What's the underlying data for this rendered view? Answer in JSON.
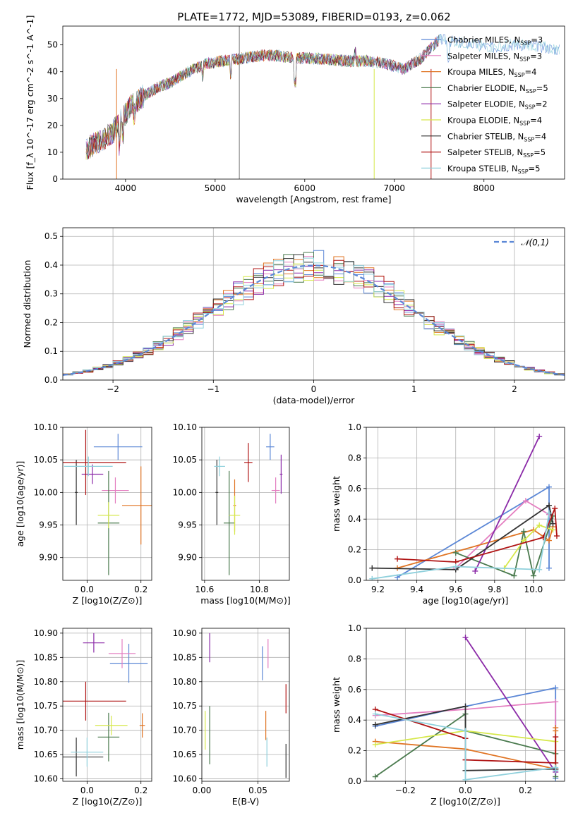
{
  "figure": {
    "title": "PLATE=1772, MJD=53089, FIBERID=0193, z=0.062"
  },
  "colors": {
    "Chabrier MILES": "#5b87d6",
    "Salpeter MILES": "#e47ec0",
    "Kroupa MILES": "#e07423",
    "Chabrier ELODIE": "#4a7a4e",
    "Salpeter ELODIE": "#8b2aa8",
    "Kroupa ELODIE": "#d6e84a",
    "Chabrier STELIB": "#333333",
    "Salpeter STELIB": "#b01515",
    "Kroupa STELIB": "#8fd0dc"
  },
  "chart_data": [
    {
      "id": "spectrum",
      "type": "line",
      "title": "PLATE=1772, MJD=53089, FIBERID=0193, z=0.062",
      "xlabel": "wavelength [Angstrom, rest frame]",
      "ylabel": "Flux [f_λ 10^-17 erg cm^-2 s^-1 A^-1]",
      "xlim": [
        3300,
        8900
      ],
      "ylim": [
        0,
        57
      ],
      "xticks": [
        4000,
        5000,
        6000,
        7000,
        8000
      ],
      "yticks": [
        0,
        10,
        20,
        30,
        40,
        50
      ],
      "grid": false,
      "legend_position": "top-right",
      "continuum": {
        "x": [
          3560,
          3700,
          3850,
          3950,
          4050,
          4200,
          4350,
          4500,
          4700,
          4900,
          5100,
          5300,
          5500,
          5700,
          5900,
          6100,
          6300,
          6500,
          6700,
          6900,
          7100,
          7300,
          7500,
          7700,
          7900,
          8100,
          8300,
          8500,
          8700,
          8850
        ],
        "y": [
          11,
          14,
          17,
          22,
          27,
          31,
          34,
          36,
          40,
          43,
          44,
          45,
          46,
          46,
          45,
          45,
          44.5,
          44,
          44,
          43,
          41,
          45,
          52,
          51,
          50,
          49,
          50,
          50,
          49,
          48
        ]
      },
      "series": [
        {
          "name": "Chabrier MILES, N_SSP=3"
        },
        {
          "name": "Salpeter MILES, N_SSP=3"
        },
        {
          "name": "Kroupa MILES, N_SSP=4"
        },
        {
          "name": "Chabrier ELODIE, N_SSP=5"
        },
        {
          "name": "Salpeter ELODIE, N_SSP=2"
        },
        {
          "name": "Kroupa ELODIE, N_SSP=4"
        },
        {
          "name": "Chabrier STELIB, N_SSP=4"
        },
        {
          "name": "Salpeter STELIB, N_SSP=5"
        },
        {
          "name": "Kroupa STELIB, N_SSP=5"
        }
      ],
      "legend_labels": [
        {
          "pre": "Chabrier MILES, N",
          "sub": "SSP",
          "post": "=3"
        },
        {
          "pre": "Salpeter MILES, N",
          "sub": "SSP",
          "post": "=3"
        },
        {
          "pre": "Kroupa MILES, N",
          "sub": "SSP",
          "post": "=4"
        },
        {
          "pre": "Chabrier ELODIE, N",
          "sub": "SSP",
          "post": "=5"
        },
        {
          "pre": "Salpeter ELODIE, N",
          "sub": "SSP",
          "post": "=2"
        },
        {
          "pre": "Kroupa ELODIE, N",
          "sub": "SSP",
          "post": "=4"
        },
        {
          "pre": "Chabrier STELIB, N",
          "sub": "SSP",
          "post": "=4"
        },
        {
          "pre": "Salpeter STELIB, N",
          "sub": "SSP",
          "post": "=5"
        },
        {
          "pre": "Kroupa STELIB, N",
          "sub": "SSP",
          "post": "=5"
        }
      ]
    },
    {
      "id": "residuals",
      "type": "bar",
      "xlabel": "(data-model)/error",
      "ylabel": "Normed distribution",
      "xlim": [
        -2.5,
        2.5
      ],
      "ylim": [
        0,
        0.53
      ],
      "xticks": [
        -2,
        -1,
        0,
        1,
        2
      ],
      "yticks": [
        0.0,
        0.1,
        0.2,
        0.3,
        0.4,
        0.5
      ],
      "grid": true,
      "bin_width": 0.1,
      "reference_curve": {
        "label": "𝒩(0,1)",
        "mean": 0,
        "sigma": 1,
        "style": "dashed"
      },
      "legend_position": "top-right"
    },
    {
      "id": "age-vs-Z",
      "type": "scatter",
      "xlabel": "Z [log10(Z/Z⊙)]",
      "ylabel": "age [log10(age/yr)]",
      "xlim": [
        -0.09,
        0.24
      ],
      "ylim": [
        9.865,
        10.1
      ],
      "xticks": [
        0.0,
        0.2
      ],
      "yticks": [
        9.9,
        9.95,
        10.0,
        10.05,
        10.1
      ],
      "grid": true,
      "points": [
        {
          "series": "Chabrier MILES",
          "x": 0.115,
          "y": 10.07,
          "xerr": 0.09,
          "yerr": 0.02
        },
        {
          "series": "Salpeter MILES",
          "x": 0.105,
          "y": 10.003,
          "xerr": 0.05,
          "yerr": 0.02
        },
        {
          "series": "Kroupa MILES",
          "x": 0.2,
          "y": 9.98,
          "xerr": 0.07,
          "yerr": 0.06
        },
        {
          "series": "Chabrier ELODIE",
          "x": 0.08,
          "y": 9.953,
          "xerr": 0.04,
          "yerr": 0.08
        },
        {
          "series": "Salpeter ELODIE",
          "x": 0.02,
          "y": 10.028,
          "xerr": 0.04,
          "yerr": 0.015
        },
        {
          "series": "Kroupa ELODIE",
          "x": 0.08,
          "y": 9.965,
          "xerr": 0.04,
          "yerr": 0.02
        },
        {
          "series": "Chabrier STELIB",
          "x": -0.04,
          "y": 10.0,
          "xerr": 0.005,
          "yerr": 0.05
        },
        {
          "series": "Salpeter STELIB",
          "x": -0.005,
          "y": 10.046,
          "xerr": 0.15,
          "yerr": 0.05
        },
        {
          "series": "Kroupa STELIB",
          "x": 0.005,
          "y": 10.04,
          "xerr": 0.09,
          "yerr": 0.015
        }
      ]
    },
    {
      "id": "age-vs-mass",
      "type": "scatter",
      "xlabel": "mass [log10(M/M⊙)]",
      "ylabel": "",
      "xlim": [
        10.59,
        10.91
      ],
      "ylim": [
        9.865,
        10.1
      ],
      "xticks": [
        10.6,
        10.8
      ],
      "yticks": [
        9.9,
        9.95,
        10.0,
        10.05,
        10.1
      ],
      "grid": true,
      "points": [
        {
          "series": "Chabrier MILES",
          "x": 10.84,
          "y": 10.07,
          "xerr": 0.015,
          "yerr": 0.02
        },
        {
          "series": "Salpeter MILES",
          "x": 10.86,
          "y": 10.003,
          "xerr": 0.015,
          "yerr": 0.02
        },
        {
          "series": "Kroupa MILES",
          "x": 10.71,
          "y": 9.98,
          "xerr": 0.005,
          "yerr": 0.04
        },
        {
          "series": "Chabrier ELODIE",
          "x": 10.69,
          "y": 9.953,
          "xerr": 0.02,
          "yerr": 0.08
        },
        {
          "series": "Salpeter ELODIE",
          "x": 10.88,
          "y": 10.028,
          "xerr": 0.005,
          "yerr": 0.03
        },
        {
          "series": "Kroupa ELODIE",
          "x": 10.71,
          "y": 9.965,
          "xerr": 0.02,
          "yerr": 0.03
        },
        {
          "series": "Chabrier STELIB",
          "x": 10.645,
          "y": 10.0,
          "xerr": 0.005,
          "yerr": 0.05
        },
        {
          "series": "Salpeter STELIB",
          "x": 10.76,
          "y": 10.046,
          "xerr": 0.015,
          "yerr": 0.03
        },
        {
          "series": "Kroupa STELIB",
          "x": 10.655,
          "y": 10.04,
          "xerr": 0.02,
          "yerr": 0.015
        }
      ]
    },
    {
      "id": "weight-vs-age",
      "type": "line",
      "xlabel": "age [log10(age/yr)]",
      "ylabel": "mass weight",
      "xlim": [
        9.14,
        10.16
      ],
      "ylim": [
        0,
        1.0
      ],
      "xticks": [
        9.2,
        9.4,
        9.6,
        9.8,
        10.0
      ],
      "yticks": [
        0.0,
        0.2,
        0.4,
        0.6,
        0.8,
        1.0
      ],
      "grid": true,
      "series": [
        {
          "color_key": "Chabrier MILES",
          "x": [
            9.3,
            10.08,
            10.08
          ],
          "y": [
            0.02,
            0.61,
            0.08
          ]
        },
        {
          "color_key": "Salpeter MILES",
          "x": [
            9.6,
            9.96,
            10.08
          ],
          "y": [
            0.08,
            0.52,
            0.43
          ]
        },
        {
          "color_key": "Kroupa MILES",
          "x": [
            9.3,
            10.0,
            10.08,
            10.1
          ],
          "y": [
            0.08,
            0.33,
            0.26,
            0.35
          ]
        },
        {
          "color_key": "Chabrier ELODIE",
          "x": [
            9.6,
            9.9,
            9.95,
            10.0,
            10.1
          ],
          "y": [
            0.18,
            0.03,
            0.32,
            0.03,
            0.42
          ]
        },
        {
          "color_key": "Salpeter ELODIE",
          "x": [
            9.7,
            10.03
          ],
          "y": [
            0.06,
            0.94
          ]
        },
        {
          "color_key": "Kroupa ELODIE",
          "x": [
            9.85,
            9.95,
            10.03,
            10.1
          ],
          "y": [
            0.08,
            0.26,
            0.36,
            0.33
          ]
        },
        {
          "color_key": "Chabrier STELIB",
          "x": [
            9.17,
            9.6,
            10.08,
            10.1
          ],
          "y": [
            0.08,
            0.07,
            0.49,
            0.37
          ]
        },
        {
          "color_key": "Salpeter STELIB",
          "x": [
            9.3,
            9.6,
            10.05,
            10.11,
            10.12
          ],
          "y": [
            0.14,
            0.12,
            0.28,
            0.47,
            0.29
          ]
        },
        {
          "color_key": "Kroupa STELIB",
          "x": [
            9.17,
            9.6,
            10.03,
            10.08
          ],
          "y": [
            0.01,
            0.09,
            0.07,
            0.44
          ]
        }
      ]
    },
    {
      "id": "mass-vs-Z",
      "type": "scatter",
      "xlabel": "Z [log10(Z/Z⊙)]",
      "ylabel": "mass [log10(M/M⊙)]",
      "xlim": [
        -0.09,
        0.24
      ],
      "ylim": [
        10.595,
        10.91
      ],
      "xticks": [
        0.0,
        0.2
      ],
      "yticks": [
        10.6,
        10.65,
        10.7,
        10.75,
        10.8,
        10.85,
        10.9
      ],
      "grid": true,
      "points": [
        {
          "series": "Chabrier MILES",
          "x": 0.155,
          "y": 10.838,
          "xerr": 0.07,
          "yerr": 0.04
        },
        {
          "series": "Salpeter MILES",
          "x": 0.13,
          "y": 10.858,
          "xerr": 0.05,
          "yerr": 0.03
        },
        {
          "series": "Kroupa MILES",
          "x": 0.205,
          "y": 10.71,
          "xerr": 0.01,
          "yerr": 0.025
        },
        {
          "series": "Chabrier ELODIE",
          "x": 0.08,
          "y": 10.686,
          "xerr": 0.04,
          "yerr": 0.05
        },
        {
          "series": "Salpeter ELODIE",
          "x": 0.025,
          "y": 10.88,
          "xerr": 0.04,
          "yerr": 0.02
        },
        {
          "series": "Kroupa ELODIE",
          "x": 0.09,
          "y": 10.71,
          "xerr": 0.06,
          "yerr": 0.02
        },
        {
          "series": "Chabrier STELIB",
          "x": -0.04,
          "y": 10.645,
          "xerr": 0.1,
          "yerr": 0.04
        },
        {
          "series": "Salpeter STELIB",
          "x": -0.005,
          "y": 10.76,
          "xerr": 0.15,
          "yerr": 0.04
        },
        {
          "series": "Kroupa STELIB",
          "x": 0.0,
          "y": 10.655,
          "xerr": 0.06,
          "yerr": 0.03
        }
      ]
    },
    {
      "id": "mass-vs-EBV",
      "type": "scatter",
      "xlabel": "E(B-V)",
      "ylabel": "",
      "xlim": [
        0,
        0.078
      ],
      "ylim": [
        10.595,
        10.91
      ],
      "xticks": [
        0.0,
        0.05
      ],
      "yticks": [
        10.6,
        10.65,
        10.7,
        10.75,
        10.8,
        10.85,
        10.9
      ],
      "grid": true,
      "points": [
        {
          "series": "Chabrier MILES",
          "x": 0.054,
          "y": 10.838,
          "xerr": 0,
          "yerr": 0.035
        },
        {
          "series": "Salpeter MILES",
          "x": 0.059,
          "y": 10.858,
          "xerr": 0,
          "yerr": 0.03
        },
        {
          "series": "Kroupa MILES",
          "x": 0.057,
          "y": 10.71,
          "xerr": 0,
          "yerr": 0.03
        },
        {
          "series": "Chabrier ELODIE",
          "x": 0.007,
          "y": 10.69,
          "xerr": 0,
          "yerr": 0.06
        },
        {
          "series": "Salpeter ELODIE",
          "x": 0.007,
          "y": 10.87,
          "xerr": 0,
          "yerr": 0.03
        },
        {
          "series": "Kroupa ELODIE",
          "x": 0.003,
          "y": 10.7,
          "xerr": 0,
          "yerr": 0.04
        },
        {
          "series": "Chabrier STELIB",
          "x": 0.075,
          "y": 10.637,
          "xerr": 0,
          "yerr": 0.035
        },
        {
          "series": "Salpeter STELIB",
          "x": 0.075,
          "y": 10.765,
          "xerr": 0,
          "yerr": 0.03
        },
        {
          "series": "Kroupa STELIB",
          "x": 0.058,
          "y": 10.655,
          "xerr": 0,
          "yerr": 0.03
        }
      ]
    },
    {
      "id": "weight-vs-Z",
      "type": "line",
      "xlabel": "Z [log10(Z/Z⊙)]",
      "ylabel": "mass weight",
      "xlim": [
        -0.33,
        0.33
      ],
      "ylim": [
        0,
        1.0
      ],
      "xticks": [
        -0.2,
        0.0,
        0.2
      ],
      "yticks": [
        0.0,
        0.2,
        0.4,
        0.6,
        0.8,
        1.0
      ],
      "grid": true,
      "series": [
        {
          "color_key": "Chabrier MILES",
          "x": [
            -0.3,
            0.0,
            0.3,
            0.3,
            0.3
          ],
          "y": [
            0.36,
            0.49,
            0.61,
            0.02,
            0.08
          ]
        },
        {
          "color_key": "Salpeter MILES",
          "x": [
            -0.3,
            0.0,
            0.3,
            0.3
          ],
          "y": [
            0.43,
            0.47,
            0.52,
            0.08
          ]
        },
        {
          "color_key": "Kroupa MILES",
          "x": [
            -0.3,
            0.0,
            0.3,
            0.3,
            0.3
          ],
          "y": [
            0.26,
            0.21,
            0.08,
            0.33,
            0.35
          ]
        },
        {
          "color_key": "Chabrier ELODIE",
          "x": [
            -0.3,
            0.0,
            0.0,
            0.3,
            0.3
          ],
          "y": [
            0.03,
            0.44,
            0.33,
            0.18,
            0.03
          ]
        },
        {
          "color_key": "Salpeter ELODIE",
          "x": [
            0.0,
            0.3
          ],
          "y": [
            0.94,
            0.06
          ]
        },
        {
          "color_key": "Kroupa ELODIE",
          "x": [
            -0.3,
            0.0,
            0.3,
            0.3
          ],
          "y": [
            0.24,
            0.33,
            0.26,
            0.08
          ]
        },
        {
          "color_key": "Chabrier STELIB",
          "x": [
            -0.3,
            0.0,
            0.0,
            0.3,
            0.3
          ],
          "y": [
            0.37,
            0.49,
            0.07,
            0.08,
            0.08
          ]
        },
        {
          "color_key": "Salpeter STELIB",
          "x": [
            -0.3,
            0.0,
            0.0,
            0.3,
            0.3
          ],
          "y": [
            0.47,
            0.28,
            0.14,
            0.12,
            0.29
          ]
        },
        {
          "color_key": "Kroupa STELIB",
          "x": [
            -0.3,
            0.0,
            0.0,
            0.3,
            0.3
          ],
          "y": [
            0.44,
            0.33,
            0.01,
            0.09,
            0.07
          ]
        }
      ]
    }
  ]
}
